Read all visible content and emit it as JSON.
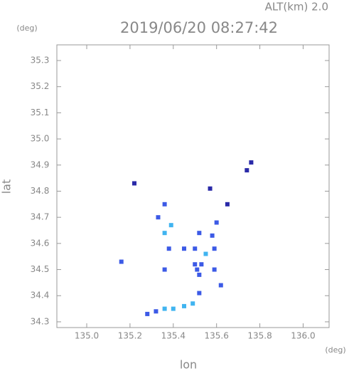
{
  "chart_data": {
    "type": "scatter",
    "title": "2019/06/20 08:27:42",
    "subtitle": "ALT(km) 2.0",
    "y_unit": "(deg)",
    "x_unit": "(deg)",
    "xlabel": "lon",
    "ylabel": "lat",
    "xlim": [
      134.862,
      136.12
    ],
    "ylim": [
      34.278,
      35.36
    ],
    "xticks": [
      {
        "value": 135,
        "label": "135.0"
      },
      135.2,
      135.4,
      135.6,
      135.8,
      {
        "value": 136,
        "label": "136.0"
      }
    ],
    "yticks": [
      34.3,
      34.4,
      34.5,
      34.6,
      34.7,
      34.8,
      34.9,
      {
        "value": 35,
        "label": "35.0"
      },
      35.1,
      35.2,
      35.3
    ],
    "series": [
      {
        "color": "#2a2aa8",
        "x": [
          135.74,
          135.76,
          135.22,
          135.57,
          135.65
        ],
        "y": [
          34.88,
          34.91,
          34.83,
          34.81,
          34.75
        ]
      },
      {
        "color": "#3c5ae6",
        "x": [
          135.36,
          135.33,
          135.52,
          135.6,
          135.58,
          135.38,
          135.45,
          135.5,
          135.59,
          135.5,
          135.51,
          135.53,
          135.52,
          135.59,
          135.36,
          135.16,
          135.52,
          135.62,
          135.28,
          135.32
        ],
        "y": [
          34.75,
          34.7,
          34.64,
          34.68,
          34.63,
          34.58,
          34.58,
          34.58,
          34.58,
          34.52,
          34.5,
          34.52,
          34.48,
          34.5,
          34.5,
          34.53,
          34.41,
          34.44,
          34.33,
          34.34
        ]
      },
      {
        "color": "#40b4f0",
        "x": [
          135.39,
          135.36,
          135.55,
          135.36,
          135.4,
          135.45,
          135.49
        ],
        "y": [
          34.67,
          34.64,
          34.56,
          34.35,
          34.35,
          34.36,
          34.37
        ]
      }
    ]
  }
}
